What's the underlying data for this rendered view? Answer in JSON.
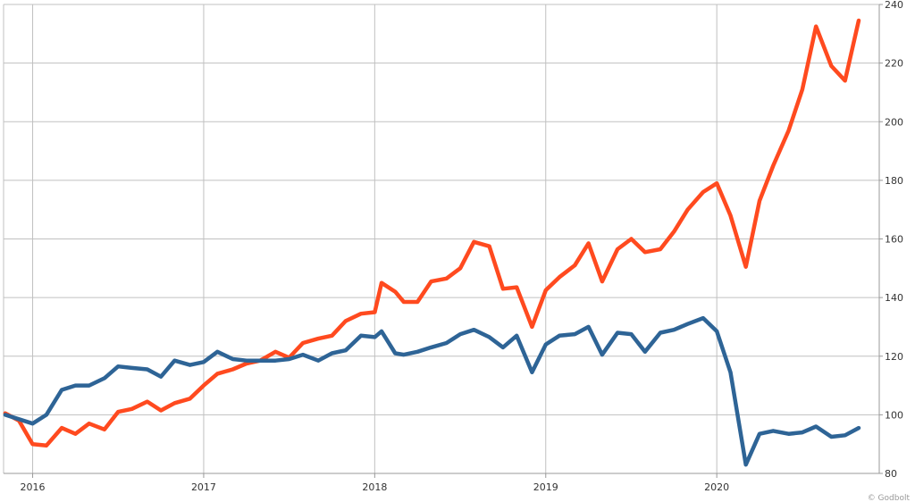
{
  "chart_data": {
    "type": "line",
    "title": "",
    "xlabel": "",
    "ylabel": "",
    "ylim": [
      80,
      240
    ],
    "xlim": [
      2015.83,
      2020.95
    ],
    "y_ticks": [
      80,
      100,
      120,
      140,
      160,
      180,
      200,
      220,
      240
    ],
    "x_ticks": [
      2016,
      2017,
      2018,
      2019,
      2020
    ],
    "x_tick_labels": [
      "2016",
      "2017",
      "2018",
      "2019",
      "2020"
    ],
    "y_axis_side": "right",
    "grid": true,
    "legend": "none",
    "credit_text": "© Godbolt",
    "series": [
      {
        "color": "#ff4a1f",
        "points": [
          [
            2015.84,
            100.5
          ],
          [
            2015.92,
            98
          ],
          [
            2016.0,
            90
          ],
          [
            2016.08,
            89.5
          ],
          [
            2016.17,
            95.5
          ],
          [
            2016.25,
            93.5
          ],
          [
            2016.33,
            97
          ],
          [
            2016.42,
            95
          ],
          [
            2016.5,
            101
          ],
          [
            2016.58,
            102
          ],
          [
            2016.67,
            104.5
          ],
          [
            2016.75,
            101.5
          ],
          [
            2016.83,
            104
          ],
          [
            2016.92,
            105.5
          ],
          [
            2017.0,
            110
          ],
          [
            2017.08,
            114
          ],
          [
            2017.17,
            115.5
          ],
          [
            2017.25,
            117.5
          ],
          [
            2017.33,
            118.5
          ],
          [
            2017.42,
            121.5
          ],
          [
            2017.5,
            119.5
          ],
          [
            2017.58,
            124.5
          ],
          [
            2017.67,
            126
          ],
          [
            2017.75,
            127
          ],
          [
            2017.83,
            132
          ],
          [
            2017.92,
            134.5
          ],
          [
            2018.0,
            135
          ],
          [
            2018.04,
            145
          ],
          [
            2018.12,
            142
          ],
          [
            2018.17,
            138.5
          ],
          [
            2018.25,
            138.5
          ],
          [
            2018.33,
            145.5
          ],
          [
            2018.42,
            146.5
          ],
          [
            2018.5,
            150
          ],
          [
            2018.58,
            159
          ],
          [
            2018.67,
            157.5
          ],
          [
            2018.75,
            143
          ],
          [
            2018.83,
            143.5
          ],
          [
            2018.92,
            130
          ],
          [
            2019.0,
            142.5
          ],
          [
            2019.08,
            147
          ],
          [
            2019.17,
            151
          ],
          [
            2019.25,
            158.5
          ],
          [
            2019.33,
            145.5
          ],
          [
            2019.42,
            156.5
          ],
          [
            2019.5,
            160
          ],
          [
            2019.58,
            155.5
          ],
          [
            2019.67,
            156.5
          ],
          [
            2019.75,
            162.5
          ],
          [
            2019.83,
            170
          ],
          [
            2019.92,
            176
          ],
          [
            2020.0,
            179
          ],
          [
            2020.08,
            168
          ],
          [
            2020.17,
            150.5
          ],
          [
            2020.25,
            173
          ],
          [
            2020.33,
            185
          ],
          [
            2020.42,
            197
          ],
          [
            2020.5,
            211
          ],
          [
            2020.58,
            232.5
          ],
          [
            2020.67,
            219
          ],
          [
            2020.75,
            214
          ],
          [
            2020.83,
            234.5
          ]
        ]
      },
      {
        "color": "#2e6496",
        "points": [
          [
            2015.84,
            100
          ],
          [
            2015.92,
            98.5
          ],
          [
            2016.0,
            97
          ],
          [
            2016.08,
            100
          ],
          [
            2016.17,
            108.5
          ],
          [
            2016.25,
            110
          ],
          [
            2016.33,
            110
          ],
          [
            2016.42,
            112.5
          ],
          [
            2016.5,
            116.5
          ],
          [
            2016.58,
            116
          ],
          [
            2016.67,
            115.5
          ],
          [
            2016.75,
            113
          ],
          [
            2016.83,
            118.5
          ],
          [
            2016.92,
            117
          ],
          [
            2017.0,
            118
          ],
          [
            2017.08,
            121.5
          ],
          [
            2017.17,
            119
          ],
          [
            2017.25,
            118.5
          ],
          [
            2017.33,
            118.5
          ],
          [
            2017.42,
            118.5
          ],
          [
            2017.5,
            119
          ],
          [
            2017.58,
            120.5
          ],
          [
            2017.67,
            118.5
          ],
          [
            2017.75,
            121
          ],
          [
            2017.83,
            122
          ],
          [
            2017.92,
            127
          ],
          [
            2018.0,
            126.5
          ],
          [
            2018.04,
            128.5
          ],
          [
            2018.12,
            121
          ],
          [
            2018.17,
            120.5
          ],
          [
            2018.25,
            121.5
          ],
          [
            2018.33,
            123
          ],
          [
            2018.42,
            124.5
          ],
          [
            2018.5,
            127.5
          ],
          [
            2018.58,
            129
          ],
          [
            2018.67,
            126.5
          ],
          [
            2018.75,
            123
          ],
          [
            2018.83,
            127
          ],
          [
            2018.92,
            114.5
          ],
          [
            2019.0,
            124
          ],
          [
            2019.08,
            127
          ],
          [
            2019.17,
            127.5
          ],
          [
            2019.25,
            130
          ],
          [
            2019.33,
            120.5
          ],
          [
            2019.42,
            128
          ],
          [
            2019.5,
            127.5
          ],
          [
            2019.58,
            121.5
          ],
          [
            2019.67,
            128
          ],
          [
            2019.75,
            129
          ],
          [
            2019.83,
            131
          ],
          [
            2019.92,
            133
          ],
          [
            2020.0,
            128.5
          ],
          [
            2020.08,
            114.5
          ],
          [
            2020.17,
            83
          ],
          [
            2020.25,
            93.5
          ],
          [
            2020.33,
            94.5
          ],
          [
            2020.42,
            93.5
          ],
          [
            2020.5,
            94
          ],
          [
            2020.58,
            96
          ],
          [
            2020.67,
            92.5
          ],
          [
            2020.75,
            93
          ],
          [
            2020.83,
            95.5
          ]
        ]
      }
    ]
  }
}
